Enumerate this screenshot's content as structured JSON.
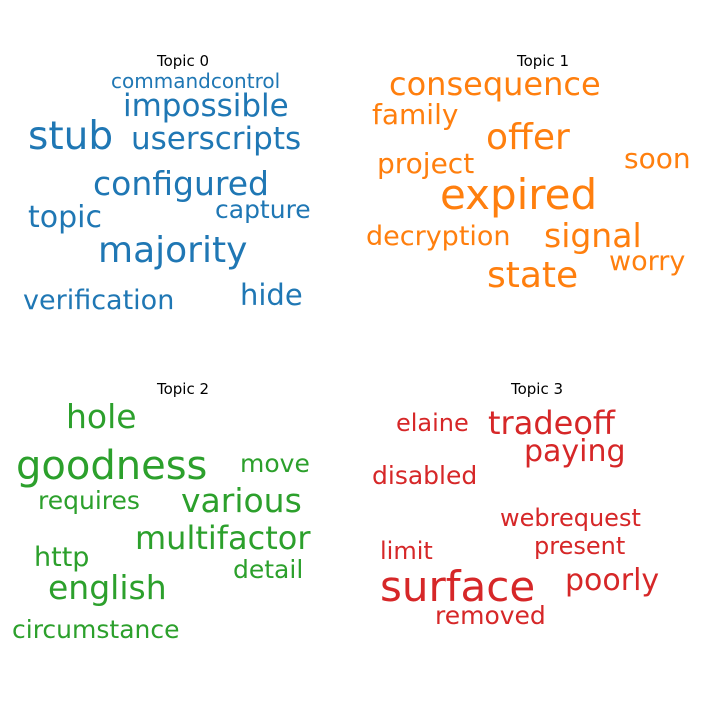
{
  "chart_data": [
    {
      "type": "wordcloud",
      "title": "Topic 0",
      "color": "#1f77b4",
      "words": [
        {
          "text": "commandcontrol",
          "weight": 0.35
        },
        {
          "text": "impossible",
          "weight": 0.62
        },
        {
          "text": "stub",
          "weight": 0.78
        },
        {
          "text": "userscripts",
          "weight": 0.62
        },
        {
          "text": "configured",
          "weight": 0.67
        },
        {
          "text": "capture",
          "weight": 0.5
        },
        {
          "text": "topic",
          "weight": 0.6
        },
        {
          "text": "majority",
          "weight": 0.72
        },
        {
          "text": "verification",
          "weight": 0.56
        },
        {
          "text": "hide",
          "weight": 0.58
        }
      ]
    },
    {
      "type": "wordcloud",
      "title": "Topic 1",
      "color": "#ff7f0e",
      "words": [
        {
          "text": "consequence",
          "weight": 0.64
        },
        {
          "text": "family",
          "weight": 0.56
        },
        {
          "text": "offer",
          "weight": 0.7
        },
        {
          "text": "soon",
          "weight": 0.55
        },
        {
          "text": "project",
          "weight": 0.56
        },
        {
          "text": "expired",
          "weight": 0.85
        },
        {
          "text": "decryption",
          "weight": 0.55
        },
        {
          "text": "signal",
          "weight": 0.66
        },
        {
          "text": "worry",
          "weight": 0.55
        },
        {
          "text": "state",
          "weight": 0.72
        }
      ]
    },
    {
      "type": "wordcloud",
      "title": "Topic 2",
      "color": "#2ca02c",
      "words": [
        {
          "text": "hole",
          "weight": 0.68
        },
        {
          "text": "goodness",
          "weight": 0.84
        },
        {
          "text": "move",
          "weight": 0.52
        },
        {
          "text": "requires",
          "weight": 0.52
        },
        {
          "text": "various",
          "weight": 0.66
        },
        {
          "text": "multifactor",
          "weight": 0.66
        },
        {
          "text": "http",
          "weight": 0.55
        },
        {
          "text": "detail",
          "weight": 0.52
        },
        {
          "text": "english",
          "weight": 0.68
        },
        {
          "text": "circumstance",
          "weight": 0.54
        }
      ]
    },
    {
      "type": "wordcloud",
      "title": "Topic 3",
      "color": "#d62728",
      "words": [
        {
          "text": "elaine",
          "weight": 0.5
        },
        {
          "text": "tradeoff",
          "weight": 0.64
        },
        {
          "text": "paying",
          "weight": 0.6
        },
        {
          "text": "disabled",
          "weight": 0.52
        },
        {
          "text": "webrequest",
          "weight": 0.5
        },
        {
          "text": "limit",
          "weight": 0.5
        },
        {
          "text": "present",
          "weight": 0.5
        },
        {
          "text": "surface",
          "weight": 0.85
        },
        {
          "text": "poorly",
          "weight": 0.6
        },
        {
          "text": "removed",
          "weight": 0.52
        }
      ]
    }
  ]
}
